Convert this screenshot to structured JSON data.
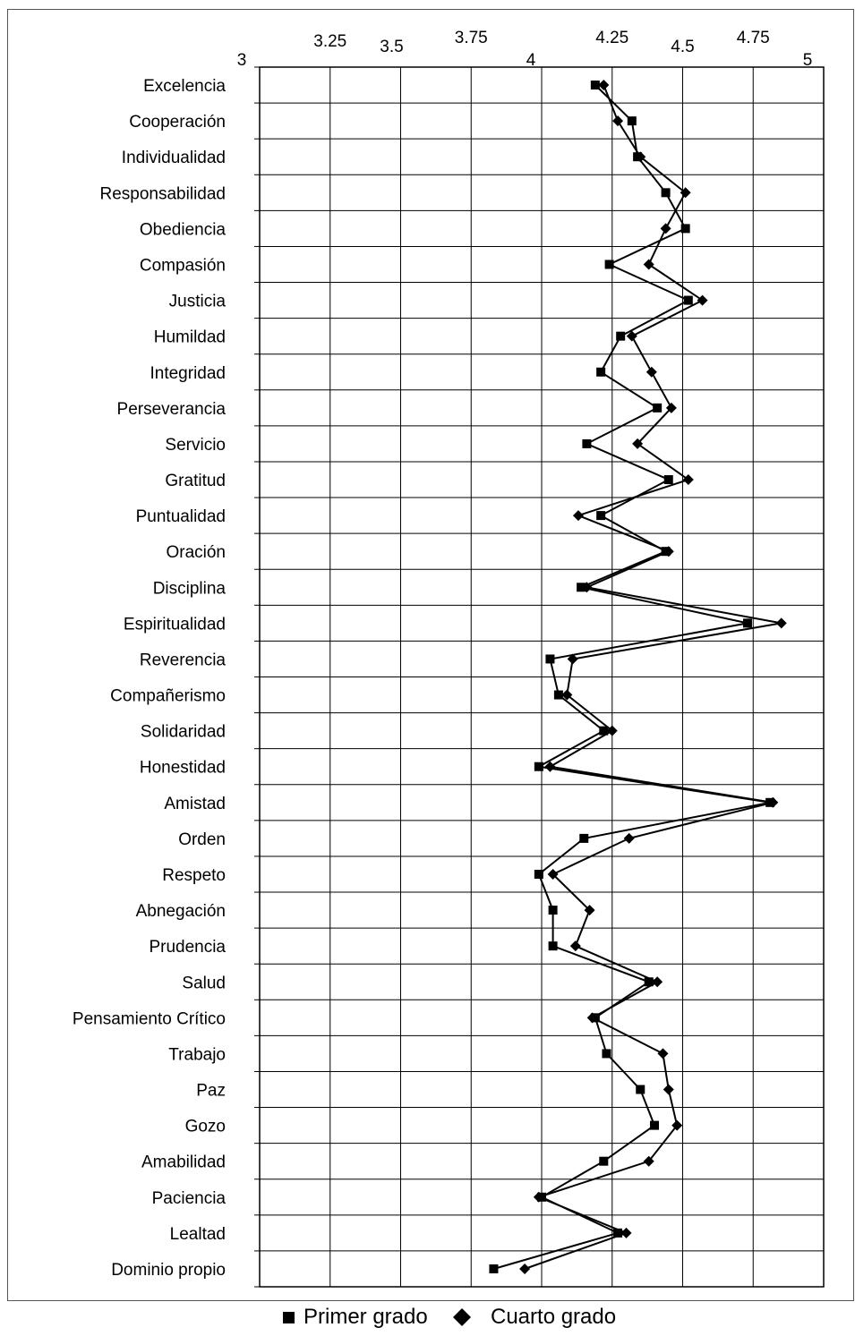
{
  "chart_data": {
    "type": "line",
    "orientation": "horizontal-values",
    "title": "",
    "xlabel": "",
    "ylabel": "",
    "xlim": [
      3,
      5
    ],
    "x_ticks": [
      "3",
      "3.25",
      "3.5",
      "3.75",
      "4",
      "4.25",
      "4.5",
      "4.75",
      "5"
    ],
    "grid": true,
    "legend_position": "bottom",
    "categories": [
      "Excelencia",
      "Cooperación",
      "Individualidad",
      "Responsabilidad",
      "Obediencia",
      "Compasión",
      "Justicia",
      "Humildad",
      "Integridad",
      "Perseverancia",
      "Servicio",
      "Gratitud",
      "Puntualidad",
      "Oración",
      "Disciplina",
      "Espiritualidad",
      "Reverencia",
      "Compañerismo",
      "Solidaridad",
      "Honestidad",
      "Amistad",
      "Orden",
      "Respeto",
      "Abnegación",
      "Prudencia",
      "Salud",
      "Pensamiento Crítico",
      "Trabajo",
      "Paz",
      "Gozo",
      "Amabilidad",
      "Paciencia",
      "Lealtad",
      "Dominio propio"
    ],
    "series": [
      {
        "name": "Primer grado",
        "marker": "square",
        "values": [
          4.19,
          4.32,
          4.34,
          4.44,
          4.51,
          4.24,
          4.52,
          4.28,
          4.21,
          4.41,
          4.16,
          4.45,
          4.21,
          4.44,
          4.14,
          4.73,
          4.03,
          4.06,
          4.22,
          3.99,
          4.81,
          4.15,
          3.99,
          4.04,
          4.04,
          4.38,
          4.19,
          4.23,
          4.35,
          4.4,
          4.22,
          4.0,
          4.27,
          3.83
        ]
      },
      {
        "name": "Cuarto grado",
        "marker": "diamond",
        "values": [
          4.22,
          4.27,
          4.35,
          4.51,
          4.44,
          4.38,
          4.57,
          4.32,
          4.39,
          4.46,
          4.34,
          4.52,
          4.13,
          4.45,
          4.16,
          4.85,
          4.11,
          4.09,
          4.25,
          4.03,
          4.82,
          4.31,
          4.04,
          4.17,
          4.12,
          4.41,
          4.18,
          4.43,
          4.45,
          4.48,
          4.38,
          3.99,
          4.3,
          3.94
        ]
      }
    ]
  },
  "legend": {
    "primer_label": "Primer grado",
    "cuarto_label": "Cuarto grado"
  }
}
